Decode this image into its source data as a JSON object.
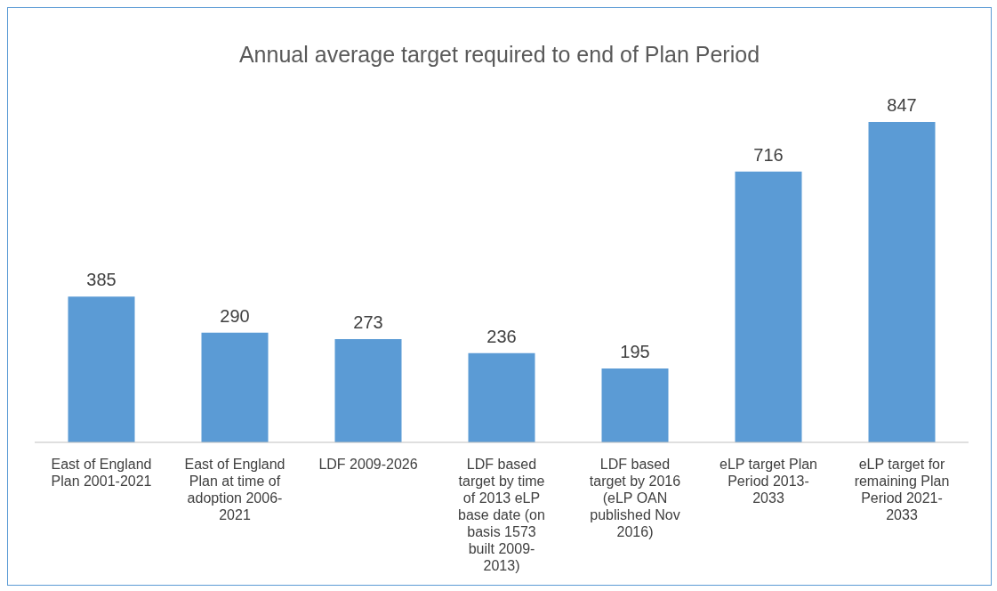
{
  "chart_data": {
    "type": "bar",
    "title": "Annual average target required to end of Plan Period",
    "categories": [
      "East of England Plan 2001-2021",
      "East of England Plan at time of adoption 2006-2021",
      "LDF 2009-2026",
      "LDF based target by time of 2013 eLP base date (on basis 1573 built 2009-2013)",
      "LDF based target by 2016 (eLP OAN published Nov 2016)",
      "eLP target Plan Period 2013-2033",
      "eLP target for remaining Plan Period 2021-2033"
    ],
    "values": [
      385,
      290,
      273,
      236,
      195,
      716,
      847
    ],
    "color": "#5b9bd5",
    "data_labels": true
  }
}
